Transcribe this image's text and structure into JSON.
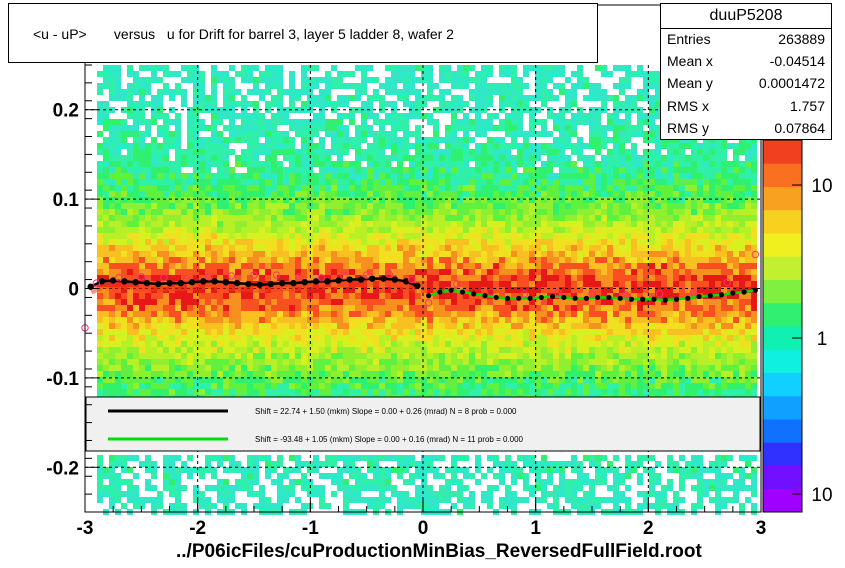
{
  "chart_data": {
    "type": "heatmap",
    "title": "<u - uP>       versus   u for Drift for barrel 3, layer 5 ladder 8, wafer 2",
    "xlim": [
      -3,
      3
    ],
    "ylim": [
      -0.25,
      0.25
    ],
    "x_ticks": [
      "-3",
      "-2",
      "-1",
      "0",
      "1",
      "2",
      "3"
    ],
    "y_ticks": [
      "-0.2",
      "-0.1",
      "0",
      "0.1",
      "0.2"
    ],
    "z_ticks": [
      "10",
      "1",
      "10"
    ],
    "z_scale": "log",
    "grid": true,
    "stats": {
      "name": "duuP5208",
      "rows": [
        {
          "key": "Entries",
          "value": "263889"
        },
        {
          "key": "Mean x",
          "value": "-0.04514"
        },
        {
          "key": "Mean y",
          "value": "0.0001472"
        },
        {
          "key": "RMS x",
          "value": "1.757"
        },
        {
          "key": "RMS y",
          "value": "0.07864"
        }
      ]
    },
    "legend": [
      {
        "color": "#000000",
        "text": "Shift =    22.74 + 1.50 (mkm) Slope =     0.00 + 0.26 (mrad)  N = 8 prob = 0.000"
      },
      {
        "color": "#00e000",
        "text": "Shift =   -93.48 + 1.05 (mkm) Slope =     0.00 + 0.16 (mrad)  N = 11 prob = 0.000"
      }
    ],
    "series": [
      {
        "x": [
          -2.95,
          -2.85,
          -2.75,
          -2.65,
          -2.55,
          -2.45,
          -2.35,
          -2.25,
          -2.15,
          -2.05,
          -1.95,
          -1.85,
          -1.75,
          -1.65,
          -1.55,
          -1.45,
          -1.35,
          -1.25,
          -1.15,
          -1.05,
          -0.95,
          -0.85,
          -0.75,
          -0.65,
          -0.55,
          -0.45,
          -0.35,
          -0.25,
          -0.15,
          -0.05
        ],
        "y": [
          0.002,
          0.008,
          0.009,
          0.008,
          0.007,
          0.006,
          0.005,
          0.006,
          0.006,
          0.007,
          0.008,
          0.008,
          0.007,
          0.006,
          0.005,
          0.004,
          0.005,
          0.006,
          0.006,
          0.007,
          0.008,
          0.008,
          0.009,
          0.01,
          0.01,
          0.011,
          0.011,
          0.01,
          0.008,
          0.003
        ]
      },
      {
        "x": [
          0.05,
          0.15,
          0.25,
          0.35,
          0.45,
          0.55,
          0.65,
          0.75,
          0.85,
          0.95,
          1.05,
          1.15,
          1.25,
          1.35,
          1.45,
          1.55,
          1.65,
          1.75,
          1.85,
          1.95,
          2.05,
          2.15,
          2.25,
          2.35,
          2.45,
          2.55,
          2.65,
          2.75,
          2.85,
          2.95
        ],
        "y": [
          -0.008,
          -0.004,
          -0.002,
          -0.004,
          -0.006,
          -0.008,
          -0.01,
          -0.011,
          -0.011,
          -0.011,
          -0.01,
          -0.009,
          -0.01,
          -0.011,
          -0.011,
          -0.01,
          -0.01,
          -0.011,
          -0.012,
          -0.012,
          -0.012,
          -0.013,
          -0.012,
          -0.011,
          -0.009,
          -0.008,
          -0.007,
          -0.005,
          -0.004,
          -0.002
        ]
      },
      {
        "x": [
          -3.0,
          -2.9,
          -2.7,
          -2.5,
          -2.3,
          -2.1,
          -1.9,
          -1.7,
          -1.5,
          -1.3,
          -1.1,
          -0.9,
          -0.7,
          -0.5,
          -0.3,
          -0.1,
          0.05,
          0.3,
          0.6,
          0.9,
          1.2,
          1.5,
          1.8,
          2.1,
          2.4,
          2.7,
          2.95
        ],
        "y": [
          -0.044,
          0.006,
          0.012,
          0.013,
          0.012,
          0.011,
          0.013,
          0.014,
          0.015,
          0.015,
          0.013,
          0.012,
          0.014,
          0.015,
          0.016,
          0.01,
          -0.016,
          0.005,
          -0.004,
          -0.006,
          -0.005,
          -0.006,
          -0.007,
          -0.006,
          -0.004,
          0.007,
          0.038
        ]
      }
    ],
    "footer": "../P06icFiles/cuProductionMinBias_ReversedFullField.root"
  }
}
